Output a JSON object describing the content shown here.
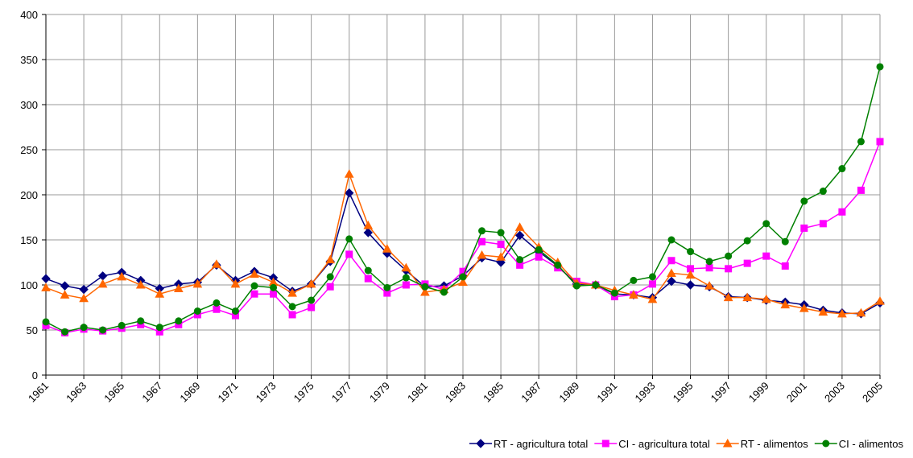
{
  "chart_data": {
    "type": "line",
    "x": [
      1961,
      1962,
      1963,
      1964,
      1965,
      1966,
      1967,
      1968,
      1969,
      1970,
      1971,
      1972,
      1973,
      1974,
      1975,
      1976,
      1977,
      1978,
      1979,
      1980,
      1981,
      1982,
      1983,
      1984,
      1985,
      1986,
      1987,
      1988,
      1989,
      1990,
      1991,
      1992,
      1993,
      1994,
      1995,
      1996,
      1997,
      1998,
      1999,
      2000,
      2001,
      2002,
      2003,
      2004,
      2005
    ],
    "xlim": [
      1961,
      2005
    ],
    "xticks": [
      1961,
      1963,
      1965,
      1967,
      1969,
      1971,
      1973,
      1975,
      1977,
      1979,
      1981,
      1983,
      1985,
      1987,
      1989,
      1991,
      1993,
      1995,
      1997,
      1999,
      2001,
      2003,
      2005
    ],
    "ylim": [
      0,
      400
    ],
    "yticks": [
      0,
      50,
      100,
      150,
      200,
      250,
      300,
      350,
      400
    ],
    "grid": true,
    "legend": "bottom",
    "series": [
      {
        "name": "RT - agricultura total",
        "color": "#000080",
        "marker": "diamond",
        "values": [
          107,
          99,
          95,
          110,
          114,
          105,
          96,
          101,
          103,
          122,
          105,
          115,
          108,
          93,
          101,
          126,
          202,
          158,
          135,
          116,
          98,
          99,
          110,
          130,
          125,
          155,
          137,
          121,
          101,
          100,
          90,
          89,
          86,
          104,
          100,
          98,
          87,
          86,
          83,
          81,
          78,
          72,
          69,
          68,
          80
        ]
      },
      {
        "name": "CI - agricultura total",
        "color": "#ff00ff",
        "marker": "square",
        "values": [
          55,
          47,
          51,
          49,
          52,
          56,
          48,
          56,
          67,
          73,
          66,
          90,
          90,
          67,
          75,
          98,
          134,
          107,
          91,
          100,
          101,
          95,
          115,
          148,
          145,
          122,
          131,
          119,
          104,
          100,
          87,
          89,
          101,
          127,
          118,
          119,
          118,
          124,
          132,
          121,
          163,
          168,
          181,
          205,
          259
        ]
      },
      {
        "name": "RT - alimentos",
        "color": "#ff6600",
        "marker": "triangle",
        "values": [
          97,
          89,
          85,
          101,
          109,
          100,
          90,
          96,
          101,
          123,
          101,
          112,
          103,
          91,
          101,
          128,
          223,
          166,
          140,
          119,
          92,
          95,
          103,
          133,
          131,
          164,
          142,
          125,
          102,
          100,
          94,
          89,
          84,
          113,
          111,
          99,
          86,
          86,
          84,
          78,
          74,
          70,
          68,
          69,
          82
        ]
      },
      {
        "name": "CI - alimentos",
        "color": "#008000",
        "marker": "circle",
        "values": [
          59,
          48,
          53,
          50,
          55,
          60,
          53,
          60,
          71,
          80,
          71,
          99,
          97,
          76,
          83,
          109,
          151,
          116,
          97,
          108,
          98,
          92,
          109,
          160,
          158,
          128,
          139,
          122,
          99,
          100,
          91,
          105,
          109,
          150,
          137,
          126,
          132,
          149,
          168,
          148,
          193,
          204,
          229,
          259,
          342
        ]
      }
    ]
  }
}
